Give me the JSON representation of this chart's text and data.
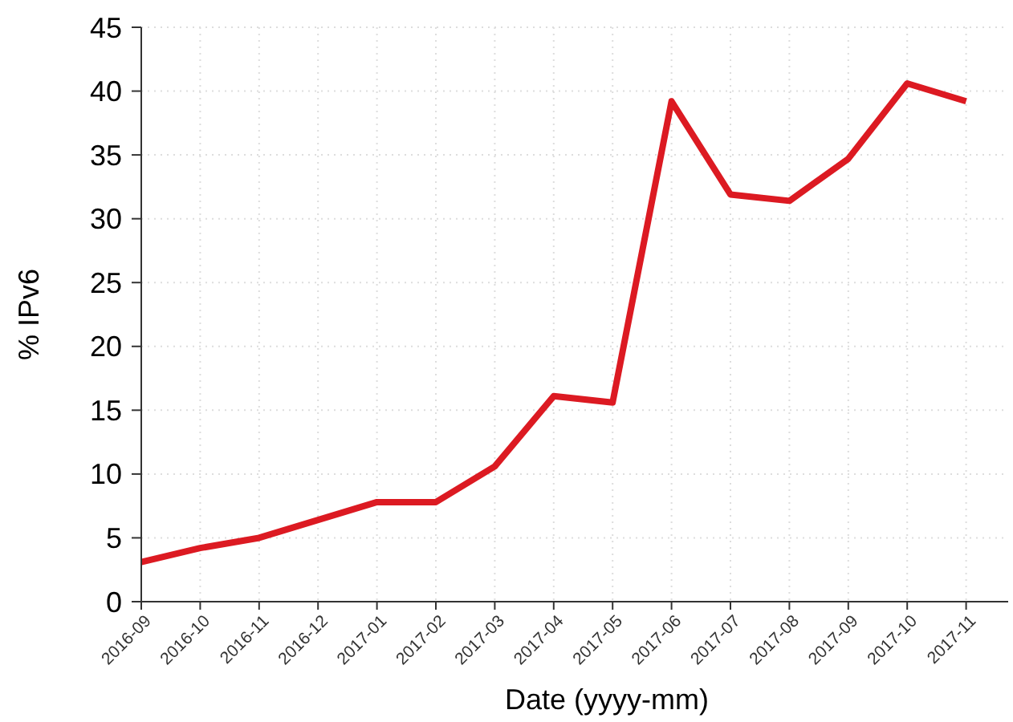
{
  "chart_data": {
    "type": "line",
    "xlabel": "Date (yyyy-mm)",
    "ylabel": "% IPv6",
    "categories": [
      "2016-09",
      "2016-10",
      "2016-11",
      "2016-12",
      "2017-01",
      "2017-02",
      "2017-03",
      "2017-04",
      "2017-05",
      "2017-06",
      "2017-07",
      "2017-08",
      "2017-09",
      "2017-10",
      "2017-11"
    ],
    "series": [
      {
        "color": "#dc1a22",
        "values": [
          3.1,
          4.2,
          5.0,
          6.4,
          7.8,
          7.8,
          10.6,
          16.1,
          15.6,
          39.2,
          31.9,
          31.4,
          34.7,
          40.6,
          39.2
        ]
      }
    ],
    "ylim": [
      0,
      45
    ],
    "yticks": [
      0,
      5,
      10,
      15,
      20,
      25,
      30,
      35,
      40,
      45
    ],
    "grid": true,
    "marker": "none",
    "line_style": "solid"
  }
}
